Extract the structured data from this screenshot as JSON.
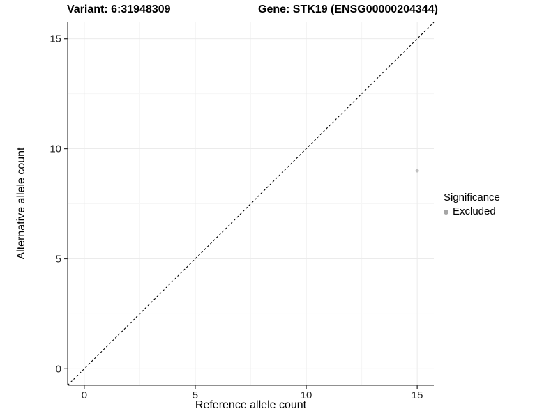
{
  "chart_data": {
    "type": "scatter",
    "title_left": "Variant: 6:31948309",
    "title_right": "Gene: STK19 (ENSG00000204344)",
    "xlabel": "Reference allele count",
    "ylabel": "Alternative allele count",
    "xlim": [
      -0.75,
      15.75
    ],
    "ylim": [
      -0.75,
      15.75
    ],
    "x_ticks": [
      0,
      5,
      10,
      15
    ],
    "y_ticks": [
      0,
      5,
      10,
      15
    ],
    "x_minor_ticks": [
      2.5,
      7.5,
      12.5
    ],
    "y_minor_ticks": [
      2.5,
      7.5,
      12.5
    ],
    "grid": "major+minor",
    "reference_line": {
      "type": "identity",
      "from": [
        -0.75,
        -0.75
      ],
      "to": [
        15.75,
        15.75
      ],
      "style": "dashed",
      "color": "#000000"
    },
    "series": [
      {
        "name": "Excluded",
        "color": "#c0c0c0",
        "point_radius": 2.5,
        "points": [
          [
            15,
            9
          ]
        ]
      }
    ],
    "legend": {
      "title": "Significance",
      "position": "right",
      "items": [
        {
          "label": "Excluded",
          "color": "#a6a6a6"
        }
      ]
    }
  },
  "colors": {
    "background": "#ffffff",
    "grid_major": "#ebebeb",
    "grid_minor": "#f6f6f6",
    "axis_line": "#4d4d4d",
    "tick_mark": "#333333",
    "tick_label": "#262626",
    "dashed_line": "#000000"
  }
}
